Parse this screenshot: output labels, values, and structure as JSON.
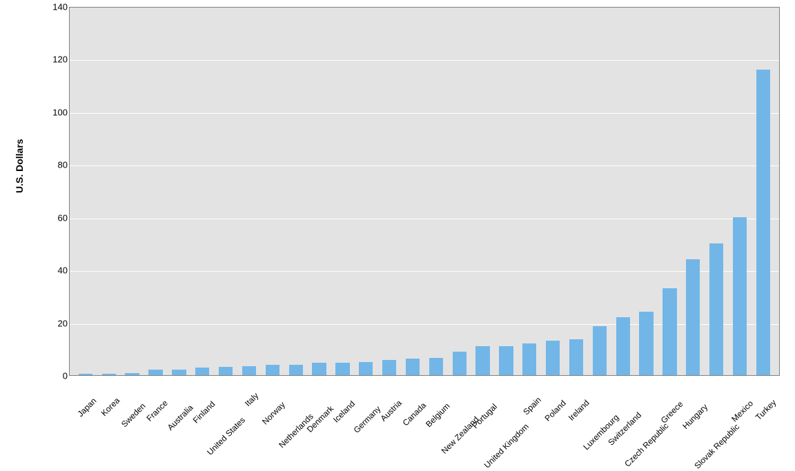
{
  "chart": {
    "type": "bar",
    "ylabel": "U.S. Dollars",
    "label_fontsize": 14,
    "label_fontweight": "bold",
    "ylim": [
      0,
      140
    ],
    "ytick_step": 20,
    "yticks": [
      0,
      20,
      40,
      60,
      80,
      100,
      120,
      140
    ],
    "background_color": "#e3e3e3",
    "page_background": "#ffffff",
    "grid_color": "#ffffff",
    "axis_border_color": "#808080",
    "bar_color": "#72b6e8",
    "bar_width": 0.6,
    "categories": [
      "Japan",
      "Korea",
      "Sweden",
      "France",
      "Australia",
      "Finland",
      "United States",
      "Italy",
      "Norway",
      "Netherlands",
      "Denmark",
      "Iceland",
      "Germany",
      "Austria",
      "Canada",
      "Belgium",
      "New Zealand",
      "Portugal",
      "United Kingdom",
      "Spain",
      "Poland",
      "Ireland",
      "Luxembourg",
      "Switzerland",
      "Czech Republic",
      "Greece",
      "Hungary",
      "Slovak Republic",
      "Mexico",
      "Turkey"
    ],
    "values": [
      0.4,
      0.6,
      0.8,
      2,
      2.2,
      2.8,
      3.2,
      3.3,
      3.8,
      4,
      4.6,
      4.8,
      5,
      5.8,
      6.2,
      6.5,
      9,
      11,
      11,
      12,
      13,
      13.5,
      18.5,
      22,
      24,
      33,
      44,
      50,
      60,
      116
    ],
    "xlabel_fontsize": 12,
    "xlabel_rotation": -45,
    "tick_fontsize": 13
  }
}
